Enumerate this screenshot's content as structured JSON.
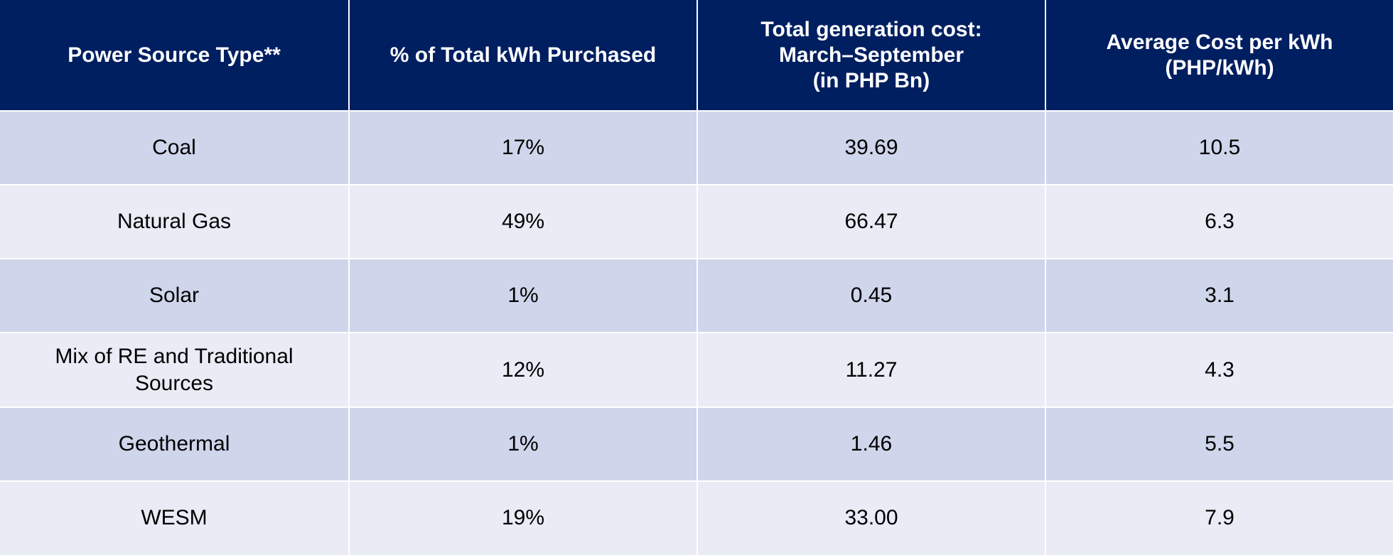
{
  "table": {
    "headers": [
      [
        "Power Source Type**"
      ],
      [
        "% of Total kWh Purchased"
      ],
      [
        "Total generation cost:",
        "March–September",
        "(in PHP Bn)"
      ],
      [
        "Average Cost per kWh",
        "(PHP/kWh)"
      ]
    ],
    "rows": [
      {
        "source": "Coal",
        "pct_kwh": "17%",
        "total_cost_bn": "39.69",
        "avg_cost_kwh": "10.5"
      },
      {
        "source": "Natural Gas",
        "pct_kwh": "49%",
        "total_cost_bn": "66.47",
        "avg_cost_kwh": "6.3"
      },
      {
        "source": "Solar",
        "pct_kwh": "1%",
        "total_cost_bn": "0.45",
        "avg_cost_kwh": "3.1"
      },
      {
        "source": "Mix of RE and Traditional Sources",
        "pct_kwh": "12%",
        "total_cost_bn": "11.27",
        "avg_cost_kwh": "4.3"
      },
      {
        "source": "Geothermal",
        "pct_kwh": "1%",
        "total_cost_bn": "1.46",
        "avg_cost_kwh": "5.5"
      },
      {
        "source": "WESM",
        "pct_kwh": "19%",
        "total_cost_bn": "33.00",
        "avg_cost_kwh": "7.9"
      }
    ]
  },
  "colors": {
    "header_bg": "#001f60",
    "header_text": "#ffffff",
    "row_band_dark": "#cfd5ea",
    "row_band_light": "#e9ebf5"
  }
}
